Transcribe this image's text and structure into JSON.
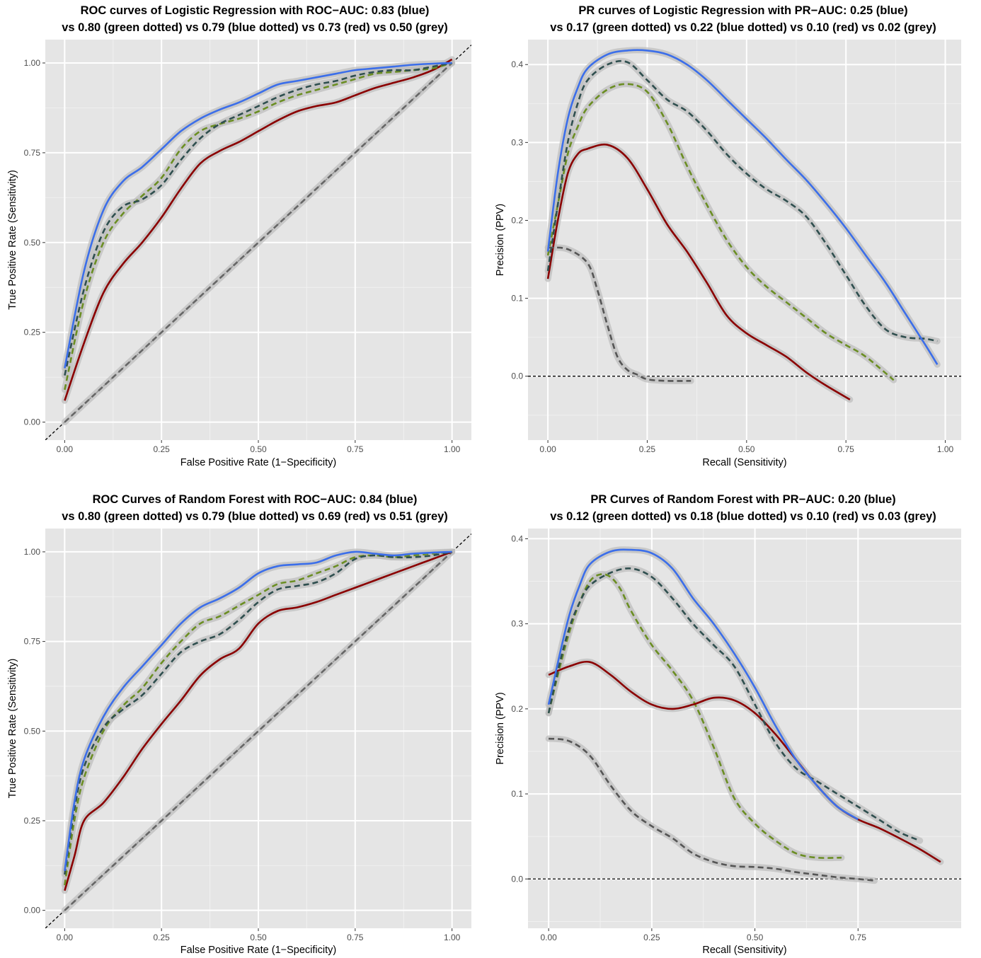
{
  "chart_data": [
    {
      "type": "line",
      "title_lines": [
        "ROC curves of Logistic Regression with ROC−AUC: 0.83 (blue)",
        "vs 0.80 (green dotted) vs 0.79 (blue dotted) vs 0.73 (red) vs 0.50 (grey)"
      ],
      "xlabel": "False Positive Rate (1−Specificity)",
      "ylabel": "True Positive Rate (Sensitivity)",
      "xlim": [
        -0.05,
        1.05
      ],
      "ylim": [
        -0.05,
        1.065
      ],
      "xticks": [
        0,
        0.25,
        0.5,
        0.75,
        1
      ],
      "xtick_labels": [
        "0.00",
        "0.25",
        "0.50",
        "0.75",
        "1.00"
      ],
      "yticks": [
        0,
        0.25,
        0.5,
        0.75,
        1
      ],
      "ytick_labels": [
        "0.00",
        "0.25",
        "0.50",
        "0.75",
        "1.00"
      ],
      "reference_line": {
        "type": "diagonal",
        "style": "dashed",
        "color": "#000000"
      },
      "series": [
        {
          "color": "#666666",
          "dashed": true,
          "x": [
            0,
            0.25,
            0.5,
            0.75,
            1
          ],
          "y": [
            0,
            0.25,
            0.5,
            0.75,
            1
          ]
        },
        {
          "color": "#8b0000",
          "dashed": false,
          "x": [
            0,
            0.05,
            0.1,
            0.15,
            0.2,
            0.25,
            0.3,
            0.35,
            0.4,
            0.45,
            0.5,
            0.55,
            0.6,
            0.65,
            0.7,
            0.75,
            0.8,
            0.85,
            0.9,
            0.95,
            1
          ],
          "y": [
            0.06,
            0.22,
            0.36,
            0.44,
            0.5,
            0.57,
            0.65,
            0.72,
            0.755,
            0.78,
            0.81,
            0.84,
            0.865,
            0.88,
            0.89,
            0.91,
            0.93,
            0.945,
            0.96,
            0.98,
            1.01
          ]
        },
        {
          "color": "#6b8e23",
          "dashed": true,
          "x": [
            0,
            0.05,
            0.1,
            0.15,
            0.2,
            0.25,
            0.3,
            0.35,
            0.4,
            0.45,
            0.5,
            0.55,
            0.6,
            0.65,
            0.7,
            0.75,
            0.8,
            0.85,
            0.9,
            0.95,
            1
          ],
          "y": [
            0.09,
            0.34,
            0.5,
            0.58,
            0.63,
            0.68,
            0.76,
            0.81,
            0.83,
            0.845,
            0.865,
            0.89,
            0.91,
            0.925,
            0.94,
            0.955,
            0.97,
            0.975,
            0.98,
            0.985,
            1.0
          ]
        },
        {
          "color": "#2f4f4f",
          "dashed": true,
          "x": [
            0,
            0.05,
            0.1,
            0.15,
            0.2,
            0.25,
            0.3,
            0.35,
            0.4,
            0.45,
            0.5,
            0.55,
            0.6,
            0.65,
            0.7,
            0.75,
            0.8,
            0.85,
            0.9,
            0.95,
            1
          ],
          "y": [
            0.13,
            0.37,
            0.53,
            0.6,
            0.62,
            0.66,
            0.73,
            0.79,
            0.83,
            0.855,
            0.88,
            0.905,
            0.925,
            0.94,
            0.95,
            0.965,
            0.975,
            0.98,
            0.98,
            0.99,
            1.0
          ]
        },
        {
          "color": "#3b6eea",
          "dashed": false,
          "x": [
            0,
            0.05,
            0.1,
            0.15,
            0.2,
            0.25,
            0.3,
            0.35,
            0.4,
            0.45,
            0.5,
            0.55,
            0.6,
            0.65,
            0.7,
            0.75,
            0.8,
            0.85,
            0.9,
            0.95,
            1
          ],
          "y": [
            0.15,
            0.42,
            0.59,
            0.67,
            0.71,
            0.76,
            0.81,
            0.845,
            0.87,
            0.89,
            0.915,
            0.94,
            0.95,
            0.96,
            0.97,
            0.98,
            0.985,
            0.99,
            0.995,
            0.998,
            1.0
          ]
        }
      ]
    },
    {
      "type": "line",
      "title_lines": [
        "PR curves of Logistic Regression with PR−AUC: 0.25 (blue)",
        "vs 0.17 (green dotted) vs 0.22 (blue dotted) vs 0.10 (red) vs 0.02 (grey)"
      ],
      "xlabel": "Recall (Sensitivity)",
      "ylabel": "Precision (PPV)",
      "xlim": [
        -0.05,
        1.04
      ],
      "ylim": [
        -0.082,
        0.432
      ],
      "xticks": [
        0,
        0.25,
        0.5,
        0.75,
        1
      ],
      "xtick_labels": [
        "0.00",
        "0.25",
        "0.50",
        "0.75",
        "1.00"
      ],
      "yticks": [
        0,
        0.1,
        0.2,
        0.3,
        0.4
      ],
      "ytick_labels": [
        "0.0",
        "0.1",
        "0.2",
        "0.3",
        "0.4"
      ],
      "reference_line": {
        "type": "hline",
        "y": 0,
        "style": "dashed",
        "color": "#000000"
      },
      "series": [
        {
          "color": "#8b0000",
          "dashed": false,
          "x": [
            0,
            0.025,
            0.05,
            0.075,
            0.1,
            0.15,
            0.2,
            0.25,
            0.3,
            0.35,
            0.4,
            0.45,
            0.5,
            0.55,
            0.6,
            0.65,
            0.7,
            0.76
          ],
          "y": [
            0.125,
            0.2,
            0.26,
            0.285,
            0.292,
            0.297,
            0.28,
            0.24,
            0.195,
            0.16,
            0.12,
            0.078,
            0.055,
            0.04,
            0.025,
            0.005,
            -0.012,
            -0.03
          ]
        },
        {
          "color": "#6b8e23",
          "dashed": true,
          "x": [
            0,
            0.025,
            0.05,
            0.075,
            0.1,
            0.15,
            0.2,
            0.25,
            0.3,
            0.35,
            0.4,
            0.45,
            0.5,
            0.55,
            0.6,
            0.65,
            0.7,
            0.75,
            0.8,
            0.87
          ],
          "y": [
            0.155,
            0.22,
            0.285,
            0.32,
            0.345,
            0.368,
            0.375,
            0.365,
            0.325,
            0.27,
            0.22,
            0.175,
            0.14,
            0.115,
            0.095,
            0.075,
            0.055,
            0.04,
            0.025,
            -0.005
          ]
        },
        {
          "color": "#2f4f4f",
          "dashed": true,
          "x": [
            0,
            0.025,
            0.05,
            0.075,
            0.1,
            0.15,
            0.2,
            0.25,
            0.3,
            0.35,
            0.4,
            0.45,
            0.5,
            0.55,
            0.6,
            0.65,
            0.7,
            0.75,
            0.8,
            0.85,
            0.9,
            0.95,
            0.98
          ],
          "y": [
            0.135,
            0.22,
            0.3,
            0.35,
            0.38,
            0.4,
            0.403,
            0.38,
            0.355,
            0.34,
            0.315,
            0.285,
            0.26,
            0.24,
            0.225,
            0.205,
            0.17,
            0.13,
            0.09,
            0.06,
            0.05,
            0.048,
            0.045
          ]
        },
        {
          "color": "#555555",
          "dashed": true,
          "x": [
            0,
            0.05,
            0.1,
            0.125,
            0.15,
            0.175,
            0.2,
            0.225,
            0.25,
            0.3,
            0.36
          ],
          "y": [
            0.165,
            0.163,
            0.145,
            0.11,
            0.065,
            0.025,
            0.008,
            0.002,
            -0.004,
            -0.006,
            -0.006
          ]
        },
        {
          "color": "#3b6eea",
          "dashed": false,
          "x": [
            0,
            0.025,
            0.05,
            0.075,
            0.1,
            0.15,
            0.2,
            0.25,
            0.3,
            0.35,
            0.4,
            0.45,
            0.5,
            0.55,
            0.6,
            0.65,
            0.7,
            0.75,
            0.8,
            0.85,
            0.9,
            0.95,
            0.98
          ],
          "y": [
            0.16,
            0.26,
            0.33,
            0.37,
            0.395,
            0.413,
            0.418,
            0.418,
            0.413,
            0.4,
            0.38,
            0.355,
            0.33,
            0.305,
            0.278,
            0.252,
            0.222,
            0.19,
            0.155,
            0.12,
            0.08,
            0.04,
            0.015
          ]
        }
      ]
    },
    {
      "type": "line",
      "title_lines": [
        "ROC Curves of Random Forest with ROC−AUC: 0.84 (blue)",
        "vs 0.80 (green dotted) vs 0.79 (blue dotted) vs 0.69 (red) vs 0.51 (grey)"
      ],
      "xlabel": "False Positive Rate (1−Specificity)",
      "ylabel": "True Positive Rate (Sensitivity)",
      "xlim": [
        -0.05,
        1.05
      ],
      "ylim": [
        -0.05,
        1.065
      ],
      "xticks": [
        0,
        0.25,
        0.5,
        0.75,
        1
      ],
      "xtick_labels": [
        "0.00",
        "0.25",
        "0.50",
        "0.75",
        "1.00"
      ],
      "yticks": [
        0,
        0.25,
        0.5,
        0.75,
        1
      ],
      "ytick_labels": [
        "0.00",
        "0.25",
        "0.50",
        "0.75",
        "1.00"
      ],
      "reference_line": {
        "type": "diagonal",
        "style": "dashed",
        "color": "#000000"
      },
      "series": [
        {
          "color": "#666666",
          "dashed": true,
          "x": [
            0,
            0.25,
            0.5,
            0.75,
            1
          ],
          "y": [
            0,
            0.25,
            0.5,
            0.75,
            1
          ]
        },
        {
          "color": "#8b0000",
          "dashed": false,
          "x": [
            0,
            0.025,
            0.05,
            0.1,
            0.15,
            0.2,
            0.25,
            0.3,
            0.35,
            0.4,
            0.45,
            0.5,
            0.55,
            0.6,
            0.65,
            0.7,
            0.75,
            0.8,
            0.85,
            0.9,
            0.95,
            1
          ],
          "y": [
            0.055,
            0.15,
            0.25,
            0.3,
            0.37,
            0.45,
            0.52,
            0.585,
            0.655,
            0.7,
            0.73,
            0.8,
            0.835,
            0.845,
            0.86,
            0.88,
            0.9,
            0.92,
            0.94,
            0.96,
            0.98,
            1.0
          ]
        },
        {
          "color": "#6b8e23",
          "dashed": true,
          "x": [
            0,
            0.025,
            0.05,
            0.1,
            0.15,
            0.2,
            0.25,
            0.3,
            0.35,
            0.4,
            0.45,
            0.5,
            0.55,
            0.6,
            0.65,
            0.7,
            0.75,
            0.8,
            0.85,
            0.9,
            0.95,
            1
          ],
          "y": [
            0.07,
            0.25,
            0.37,
            0.5,
            0.57,
            0.62,
            0.69,
            0.75,
            0.8,
            0.82,
            0.85,
            0.88,
            0.91,
            0.92,
            0.94,
            0.96,
            0.985,
            0.99,
            0.985,
            0.99,
            0.995,
            1.0
          ]
        },
        {
          "color": "#2f4f4f",
          "dashed": true,
          "x": [
            0,
            0.025,
            0.05,
            0.1,
            0.15,
            0.2,
            0.25,
            0.3,
            0.35,
            0.4,
            0.45,
            0.5,
            0.55,
            0.6,
            0.65,
            0.7,
            0.75,
            0.8,
            0.85,
            0.9,
            0.95,
            1
          ],
          "y": [
            0.1,
            0.28,
            0.4,
            0.51,
            0.56,
            0.6,
            0.66,
            0.72,
            0.75,
            0.77,
            0.81,
            0.86,
            0.895,
            0.905,
            0.915,
            0.94,
            0.98,
            0.99,
            0.985,
            0.985,
            0.99,
            1.0
          ]
        },
        {
          "color": "#3b6eea",
          "dashed": false,
          "x": [
            0,
            0.025,
            0.05,
            0.1,
            0.15,
            0.2,
            0.25,
            0.3,
            0.35,
            0.4,
            0.45,
            0.5,
            0.55,
            0.6,
            0.65,
            0.7,
            0.75,
            0.8,
            0.85,
            0.9,
            0.95,
            1
          ],
          "y": [
            0.11,
            0.3,
            0.42,
            0.54,
            0.62,
            0.68,
            0.74,
            0.8,
            0.845,
            0.87,
            0.9,
            0.94,
            0.96,
            0.965,
            0.97,
            0.99,
            1.0,
            0.995,
            0.99,
            0.995,
            0.998,
            1.0
          ]
        }
      ]
    },
    {
      "type": "line",
      "title_lines": [
        "PR Curves of Random Forest with PR−AUC: 0.20 (blue)",
        "vs 0.12 (green dotted) vs 0.18 (blue dotted) vs 0.10 (red) vs 0.03 (grey)"
      ],
      "xlabel": "Recall (Sensitivity)",
      "ylabel": "Precision (PPV)",
      "xlim": [
        -0.05,
        1.0
      ],
      "ylim": [
        -0.058,
        0.412
      ],
      "xticks": [
        0,
        0.25,
        0.5,
        0.75
      ],
      "xtick_labels": [
        "0.00",
        "0.25",
        "0.50",
        "0.75"
      ],
      "yticks": [
        0,
        0.1,
        0.2,
        0.3,
        0.4
      ],
      "ytick_labels": [
        "0.0",
        "0.1",
        "0.2",
        "0.3",
        "0.4"
      ],
      "reference_line": {
        "type": "hline",
        "y": 0,
        "style": "dashed",
        "color": "#000000"
      },
      "series": [
        {
          "color": "#6b8e23",
          "dashed": true,
          "x": [
            0,
            0.025,
            0.05,
            0.075,
            0.1,
            0.125,
            0.15,
            0.175,
            0.2,
            0.25,
            0.3,
            0.35,
            0.4,
            0.45,
            0.5,
            0.55,
            0.6,
            0.65,
            0.71
          ],
          "y": [
            0.195,
            0.245,
            0.29,
            0.325,
            0.35,
            0.358,
            0.355,
            0.34,
            0.315,
            0.275,
            0.245,
            0.21,
            0.155,
            0.095,
            0.065,
            0.045,
            0.03,
            0.025,
            0.025
          ]
        },
        {
          "color": "#8b0000",
          "dashed": false,
          "x": [
            0,
            0.05,
            0.1,
            0.15,
            0.2,
            0.25,
            0.3,
            0.35,
            0.4,
            0.45,
            0.5,
            0.55,
            0.6,
            0.65,
            0.7,
            0.75,
            0.8,
            0.85,
            0.9,
            0.95
          ],
          "y": [
            0.24,
            0.25,
            0.255,
            0.24,
            0.22,
            0.205,
            0.2,
            0.205,
            0.213,
            0.21,
            0.195,
            0.17,
            0.14,
            0.11,
            0.085,
            0.07,
            0.06,
            0.048,
            0.035,
            0.02
          ]
        },
        {
          "color": "#2f4f4f",
          "dashed": true,
          "x": [
            0,
            0.025,
            0.05,
            0.075,
            0.1,
            0.15,
            0.2,
            0.25,
            0.3,
            0.35,
            0.4,
            0.45,
            0.5,
            0.55,
            0.6,
            0.65,
            0.7,
            0.75,
            0.8,
            0.85,
            0.9
          ],
          "y": [
            0.195,
            0.25,
            0.295,
            0.325,
            0.345,
            0.36,
            0.365,
            0.355,
            0.33,
            0.3,
            0.275,
            0.25,
            0.205,
            0.16,
            0.13,
            0.115,
            0.1,
            0.085,
            0.07,
            0.055,
            0.045
          ]
        },
        {
          "color": "#555555",
          "dashed": true,
          "x": [
            0,
            0.05,
            0.1,
            0.15,
            0.2,
            0.25,
            0.3,
            0.35,
            0.4,
            0.45,
            0.5,
            0.55,
            0.6,
            0.65,
            0.7,
            0.75,
            0.79
          ],
          "y": [
            0.165,
            0.162,
            0.145,
            0.11,
            0.08,
            0.062,
            0.048,
            0.03,
            0.02,
            0.015,
            0.014,
            0.012,
            0.008,
            0.005,
            0.002,
            0.0,
            -0.002
          ]
        },
        {
          "color": "#3b6eea",
          "dashed": false,
          "x": [
            0,
            0.025,
            0.05,
            0.075,
            0.1,
            0.15,
            0.2,
            0.25,
            0.3,
            0.35,
            0.4,
            0.45,
            0.5,
            0.55,
            0.6,
            0.65,
            0.7,
            0.75
          ],
          "y": [
            0.205,
            0.26,
            0.31,
            0.345,
            0.37,
            0.385,
            0.387,
            0.383,
            0.365,
            0.33,
            0.3,
            0.265,
            0.225,
            0.18,
            0.14,
            0.11,
            0.085,
            0.07
          ]
        }
      ]
    }
  ]
}
